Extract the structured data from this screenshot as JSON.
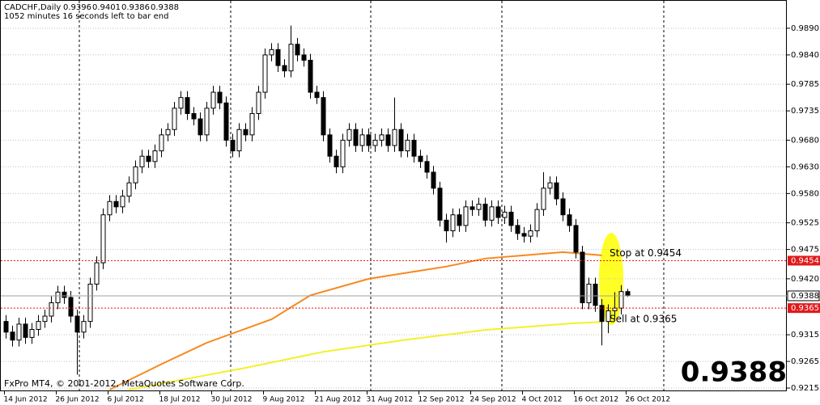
{
  "chart_data": {
    "type": "candlestick",
    "title": "CADCHF,Daily",
    "subtitle": "1052 minutes 16 seconds left to bar end",
    "footer": "FxPro MT4, © 2001-2012, MetaQuotes Software Corp.",
    "categories": [
      "14 Jun 2012",
      null,
      null,
      null,
      null,
      null,
      null,
      null,
      "26 Jun 2012",
      null,
      null,
      null,
      null,
      null,
      null,
      null,
      "6 Jul 2012",
      null,
      null,
      null,
      null,
      null,
      null,
      null,
      "18 Jul 2012",
      null,
      null,
      null,
      null,
      null,
      null,
      null,
      "30 Jul 2012",
      null,
      null,
      null,
      null,
      null,
      null,
      null,
      "9 Aug 2012",
      null,
      null,
      null,
      null,
      null,
      null,
      null,
      "21 Aug 2012",
      null,
      null,
      null,
      null,
      null,
      null,
      null,
      "31 Aug 2012",
      null,
      null,
      null,
      null,
      null,
      null,
      null,
      "12 Sep 2012",
      null,
      null,
      null,
      null,
      null,
      null,
      null,
      "24 Sep 2012",
      null,
      null,
      null,
      null,
      null,
      null,
      null,
      "4 Oct 2012",
      null,
      null,
      null,
      null,
      null,
      null,
      null,
      "16 Oct 2012",
      null,
      null,
      null,
      null,
      null,
      null,
      null,
      "26 Oct 2012"
    ],
    "open": [
      0.934,
      0.932,
      0.9305,
      0.9335,
      0.931,
      0.9325,
      0.934,
      0.935,
      0.9375,
      0.9395,
      0.9385,
      0.935,
      0.932,
      0.934,
      0.941,
      0.945,
      0.954,
      0.9565,
      0.9555,
      0.9575,
      0.96,
      0.963,
      0.965,
      0.964,
      0.966,
      0.969,
      0.97,
      0.974,
      0.976,
      0.973,
      0.972,
      0.969,
      0.974,
      0.977,
      0.975,
      0.968,
      0.966,
      0.97,
      0.969,
      0.973,
      0.977,
      0.984,
      0.985,
      0.982,
      0.981,
      0.986,
      0.984,
      0.983,
      0.977,
      0.976,
      0.969,
      0.965,
      0.963,
      0.968,
      0.97,
      0.967,
      0.969,
      0.967,
      0.968,
      0.969,
      0.967,
      0.97,
      0.966,
      0.968,
      0.965,
      0.964,
      0.962,
      0.959,
      0.953,
      0.951,
      0.954,
      0.952,
      0.9555,
      0.955,
      0.956,
      0.953,
      0.9555,
      0.9535,
      0.9545,
      0.952,
      0.9505,
      0.95,
      0.951,
      0.955,
      0.959,
      0.96,
      0.957,
      0.954,
      0.952,
      0.947,
      0.9375,
      0.941,
      0.937,
      0.934,
      0.936,
      0.9365,
      0.9396
    ],
    "high": [
      0.9352,
      0.9332,
      0.9347,
      0.9347,
      0.9337,
      0.9352,
      0.9362,
      0.9387,
      0.9407,
      0.9407,
      0.9397,
      0.9362,
      0.9352,
      0.9422,
      0.9462,
      0.9552,
      0.9577,
      0.9577,
      0.9587,
      0.9612,
      0.9642,
      0.9662,
      0.9662,
      0.9672,
      0.9702,
      0.9712,
      0.9752,
      0.9772,
      0.9772,
      0.9742,
      0.9732,
      0.9752,
      0.9782,
      0.9782,
      0.9762,
      0.9692,
      0.9712,
      0.9712,
      0.9742,
      0.9782,
      0.9852,
      0.9862,
      0.9862,
      0.9832,
      0.9895,
      0.9872,
      0.9852,
      0.9842,
      0.9782,
      0.9772,
      0.9702,
      0.9662,
      0.9692,
      0.9712,
      0.9712,
      0.9702,
      0.9702,
      0.9692,
      0.9702,
      0.9702,
      0.976,
      0.9712,
      0.9692,
      0.9692,
      0.9662,
      0.9652,
      0.9632,
      0.9602,
      0.9542,
      0.9552,
      0.9552,
      0.9567,
      0.9567,
      0.9572,
      0.9572,
      0.9567,
      0.9567,
      0.9557,
      0.9557,
      0.9532,
      0.9517,
      0.9522,
      0.9562,
      0.962,
      0.9612,
      0.9612,
      0.9582,
      0.9552,
      0.9532,
      0.9482,
      0.9422,
      0.9422,
      0.9382,
      0.9372,
      0.9395,
      0.9408,
      0.9401
    ],
    "low": [
      0.9308,
      0.9293,
      0.9293,
      0.9298,
      0.9298,
      0.9313,
      0.9328,
      0.9338,
      0.9363,
      0.9373,
      0.9338,
      0.924,
      0.9308,
      0.9328,
      0.9398,
      0.9438,
      0.9528,
      0.9543,
      0.9543,
      0.9563,
      0.9588,
      0.9618,
      0.9628,
      0.9628,
      0.9648,
      0.9678,
      0.9688,
      0.9728,
      0.9718,
      0.9708,
      0.9678,
      0.9678,
      0.9728,
      0.9738,
      0.9668,
      0.9648,
      0.9648,
      0.9678,
      0.9678,
      0.9718,
      0.9758,
      0.9828,
      0.9808,
      0.9798,
      0.9798,
      0.9828,
      0.9818,
      0.9758,
      0.9748,
      0.9678,
      0.9638,
      0.9618,
      0.9618,
      0.9668,
      0.9658,
      0.9658,
      0.9658,
      0.9658,
      0.9668,
      0.9658,
      0.9658,
      0.9648,
      0.9648,
      0.9638,
      0.9628,
      0.9608,
      0.9578,
      0.9518,
      0.9488,
      0.9498,
      0.9508,
      0.9508,
      0.9538,
      0.9538,
      0.9518,
      0.9518,
      0.9523,
      0.9523,
      0.9508,
      0.9493,
      0.9488,
      0.9488,
      0.9498,
      0.9538,
      0.9578,
      0.9558,
      0.9528,
      0.9508,
      0.9458,
      0.9363,
      0.9363,
      0.9358,
      0.9295,
      0.9318,
      0.9345,
      0.9353,
      0.9386
    ],
    "close": [
      0.932,
      0.9305,
      0.9335,
      0.931,
      0.9325,
      0.934,
      0.935,
      0.9375,
      0.9395,
      0.9385,
      0.935,
      0.932,
      0.934,
      0.941,
      0.945,
      0.954,
      0.9565,
      0.9555,
      0.9575,
      0.96,
      0.963,
      0.965,
      0.964,
      0.966,
      0.969,
      0.97,
      0.974,
      0.976,
      0.973,
      0.972,
      0.969,
      0.974,
      0.977,
      0.975,
      0.968,
      0.966,
      0.97,
      0.969,
      0.973,
      0.977,
      0.984,
      0.985,
      0.982,
      0.981,
      0.986,
      0.984,
      0.983,
      0.977,
      0.976,
      0.969,
      0.965,
      0.963,
      0.968,
      0.97,
      0.967,
      0.969,
      0.967,
      0.968,
      0.969,
      0.967,
      0.97,
      0.966,
      0.968,
      0.965,
      0.964,
      0.962,
      0.959,
      0.953,
      0.951,
      0.954,
      0.952,
      0.9555,
      0.955,
      0.956,
      0.953,
      0.9555,
      0.9535,
      0.9545,
      0.952,
      0.9505,
      0.95,
      0.951,
      0.955,
      0.959,
      0.96,
      0.957,
      0.954,
      0.952,
      0.947,
      0.9375,
      0.941,
      0.937,
      0.934,
      0.936,
      0.9365,
      0.9396,
      0.9388
    ],
    "moving_averages": [
      {
        "color": "#f7891e",
        "x": [
          16,
          24,
          31,
          41,
          47,
          56,
          68,
          74,
          86,
          92
        ],
        "values": [
          0.9212,
          0.926,
          0.93,
          0.9344,
          0.9389,
          0.942,
          0.9443,
          0.9458,
          0.947,
          0.9464
        ]
      },
      {
        "color": "#f4f02a",
        "x": [
          19,
          37,
          49,
          62,
          74,
          87,
          92
        ],
        "values": [
          0.9212,
          0.9253,
          0.9283,
          0.9306,
          0.9324,
          0.9336,
          0.9339
        ]
      }
    ],
    "levels": [
      {
        "value": 0.9454,
        "text": "Stop at 0.9454"
      },
      {
        "value": 0.9365,
        "text": "Sell at 0.9365"
      }
    ],
    "ylim": [
      0.9209,
      0.9943
    ],
    "yticks": [
      {
        "value": 0.989,
        "label": "0.9890"
      },
      {
        "value": 0.984,
        "label": "0.9840"
      },
      0.9785,
      0.9735,
      {
        "value": 0.968,
        "label": "0.9680"
      },
      {
        "value": 0.963,
        "label": "0.9630"
      },
      {
        "value": 0.958,
        "label": "0.9580"
      },
      0.9525,
      0.9475,
      {
        "value": 0.942,
        "label": "0.9420"
      },
      0.9315,
      0.9265,
      0.9215
    ],
    "grid": true,
    "bull_color": "#ffffff",
    "bear_color": "#000000",
    "level_color": "#e0191b"
  }
}
